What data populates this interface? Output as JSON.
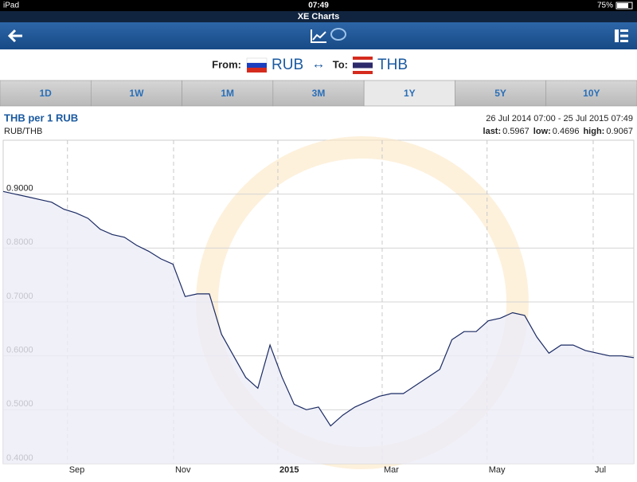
{
  "status_bar": {
    "device": "iPad",
    "time": "07:49",
    "battery": "75%"
  },
  "app_title": "XE Charts",
  "pair": {
    "from_label": "From:",
    "from": "RUB",
    "arrow": "↔",
    "to_label": "To:",
    "to": "THB"
  },
  "tabs": [
    "1D",
    "1W",
    "1M",
    "3M",
    "1Y",
    "5Y",
    "10Y"
  ],
  "selected_tab": 4,
  "chart_header": {
    "title": "THB per 1 RUB",
    "pair": "RUB/THB",
    "range": "26 Jul 2014 07:00 - 25 Jul 2015 07:49",
    "stats": [
      {
        "label": "last:",
        "value": "0.5967"
      },
      {
        "label": "low:",
        "value": "0.4696"
      },
      {
        "label": "high:",
        "value": "0.9067"
      }
    ]
  },
  "chart_data": {
    "type": "line",
    "values": [
      0.905,
      0.9,
      0.895,
      0.89,
      0.885,
      0.872,
      0.865,
      0.855,
      0.835,
      0.825,
      0.82,
      0.805,
      0.794,
      0.78,
      0.77,
      0.71,
      0.715,
      0.715,
      0.64,
      0.6,
      0.56,
      0.54,
      0.62,
      0.56,
      0.51,
      0.5,
      0.505,
      0.47,
      0.49,
      0.505,
      0.515,
      0.525,
      0.53,
      0.53,
      0.545,
      0.56,
      0.575,
      0.63,
      0.645,
      0.645,
      0.665,
      0.67,
      0.68,
      0.675,
      0.635,
      0.605,
      0.62,
      0.62,
      0.61,
      0.605,
      0.6,
      0.6,
      0.5967
    ],
    "color": "#1b2b63",
    "fill": "#ececf7",
    "xlim": [
      0,
      52
    ],
    "ylim": [
      0.4,
      1.0
    ],
    "yticks": [
      {
        "value": 0.4,
        "label": "0.4000"
      },
      {
        "value": 0.5,
        "label": "0.5000"
      },
      {
        "value": 0.6,
        "label": "0.6000"
      },
      {
        "value": 0.7,
        "label": "0.7000"
      },
      {
        "value": 0.8,
        "label": "0.8000"
      },
      {
        "value": 0.9,
        "label": "0.9000"
      }
    ],
    "xticks": [
      {
        "value": 5.3,
        "label": "Sep"
      },
      {
        "value": 14.05,
        "label": "Nov"
      },
      {
        "value": 22.65,
        "label": "2015"
      },
      {
        "value": 31.25,
        "label": "Mar"
      },
      {
        "value": 39.9,
        "label": "May"
      },
      {
        "value": 48.65,
        "label": "Jul"
      }
    ],
    "grid": true
  }
}
